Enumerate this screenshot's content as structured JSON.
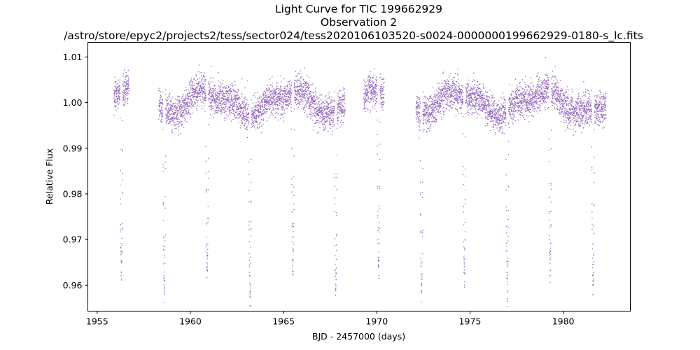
{
  "chart_data": {
    "type": "scatter",
    "title": [
      "Light Curve for TIC 199662929",
      "Observation 2",
      "/astro/store/epyc2/projects2/tess/sector024/tess2020106103520-s0024-0000000199662929-0180-s_lc.fits"
    ],
    "xlabel": "BJD - 2457000 (days)",
    "ylabel": "Relative Flux",
    "xlim": [
      1954.5,
      1983.6
    ],
    "ylim": [
      0.9543,
      1.0132
    ],
    "xticks": [
      1955,
      1960,
      1965,
      1970,
      1975,
      1980
    ],
    "xtick_labels": [
      "1955",
      "1960",
      "1965",
      "1970",
      "1975",
      "1980"
    ],
    "yticks": [
      0.96,
      0.97,
      0.98,
      0.99,
      1.0,
      1.01
    ],
    "ytick_labels": [
      "0.96",
      "0.97",
      "0.98",
      "0.99",
      "1.00",
      "1.01"
    ],
    "grid": false,
    "marker_color": "#9467bd",
    "segments": [
      [
        1955.9,
        1956.7
      ],
      [
        1958.3,
        1968.3
      ],
      [
        1969.3,
        1970.4
      ],
      [
        1972.1,
        1982.3
      ]
    ],
    "eclipse_times": [
      1956.3,
      1958.6,
      1960.9,
      1963.2,
      1965.5,
      1967.8,
      1970.1,
      1972.4,
      1974.7,
      1977.0,
      1979.3,
      1981.6
    ],
    "eclipse_depth": 0.039,
    "baseline_flux": 1.0,
    "baseline_scatter": 0.0018,
    "max_flux": 1.0101
  }
}
